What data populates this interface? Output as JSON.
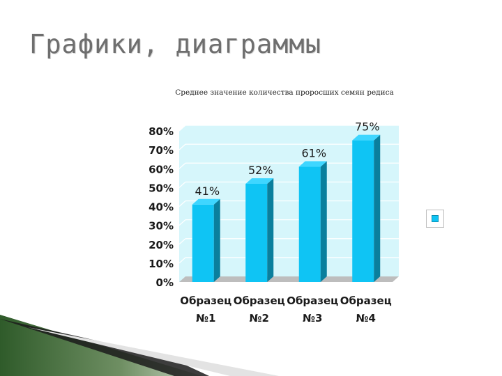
{
  "slide": {
    "title": "Графики, диаграммы"
  },
  "chart_data": {
    "type": "bar",
    "title": "Среднее значение количества проросших семян редиса",
    "categories": [
      "Образец №1",
      "Образец №2",
      "Образец №3",
      "Образец №4"
    ],
    "category_lines": [
      [
        "Образец",
        "№1"
      ],
      [
        "Образец",
        "№2"
      ],
      [
        "Образец",
        "№3"
      ],
      [
        "Образец",
        "№4"
      ]
    ],
    "values": [
      41,
      52,
      61,
      75
    ],
    "data_labels": [
      "41%",
      "52%",
      "61%",
      "75%"
    ],
    "ylim": [
      0,
      80
    ],
    "ytick_values": [
      0,
      10,
      20,
      30,
      40,
      50,
      60,
      70,
      80
    ],
    "ytick_labels": [
      "0%",
      "10%",
      "20%",
      "30%",
      "40%",
      "50%",
      "60%",
      "70%",
      "80%"
    ],
    "xlabel": "",
    "ylabel": "",
    "grid": true,
    "three_d": true,
    "legend_position": "right",
    "colors": {
      "bar_front": "#0fc4f4",
      "bar_side": "#0a7f9d",
      "bar_top": "#3fd6ff",
      "plot_back": "#d6f6fb",
      "plot_floor": "#bdbdbd",
      "gridline": "#ffffff"
    }
  }
}
